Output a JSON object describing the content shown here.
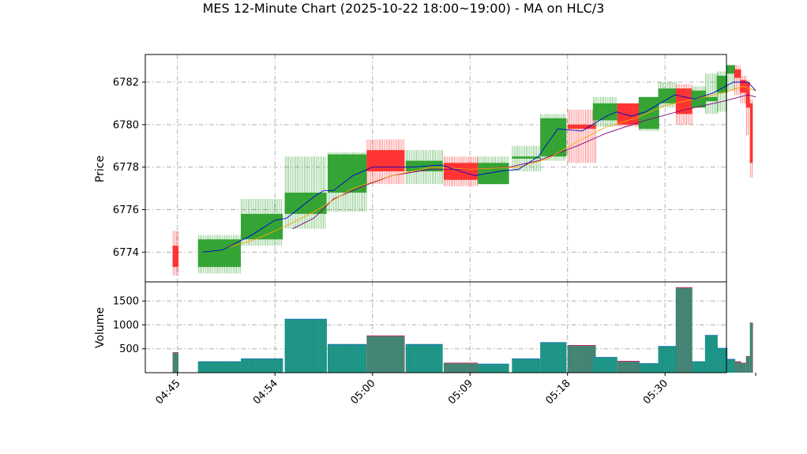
{
  "chart_data": {
    "type": "candlestick",
    "title": "MES 12-Minute Chart (2025-10-22 18:00~19:00) - MA on HLC/3",
    "price_panel": {
      "ylabel": "Price",
      "ylim": [
        6772.6,
        6783.3
      ],
      "yticks": [
        6774,
        6776,
        6778,
        6780,
        6782
      ],
      "grid": true
    },
    "volume_panel": {
      "ylabel": "Volume",
      "ylim": [
        0,
        1900
      ],
      "yticks": [
        500,
        1000,
        1500
      ],
      "grid": true
    },
    "x": {
      "xlim": [
        -3.3,
        56.3
      ],
      "tick_positions": [
        0,
        10,
        20,
        30,
        40,
        50
      ],
      "tick_labels": [
        "04:45",
        "04:54",
        "05:00",
        "05:09",
        "05:18",
        "05:30"
      ]
    },
    "colors": {
      "up": "#2ca02c",
      "down": "#ff2b2b",
      "ma_fast": "#0000cc",
      "ma_mid": "#ffa500",
      "ma_slow": "#800080",
      "vol_face": "#1f9e78",
      "vol_edge_up": "#1f77b4",
      "vol_edge_down": "#c0306a",
      "grid": "#b0b0b0"
    },
    "bars": [
      {
        "x": 0,
        "w": 0.6,
        "o": 6774.3,
        "h": 6775.0,
        "l": 6772.9,
        "c": 6773.3,
        "v": 420
      },
      {
        "x": 2.6,
        "w": 4.4,
        "o": 6773.3,
        "h": 6774.8,
        "l": 6773.0,
        "c": 6774.6,
        "v": 230
      },
      {
        "x": 7.0,
        "w": 4.3,
        "o": 6774.6,
        "h": 6776.5,
        "l": 6774.3,
        "c": 6775.8,
        "v": 290
      },
      {
        "x": 11.5,
        "w": 4.3,
        "o": 6775.8,
        "h": 6778.5,
        "l": 6775.1,
        "c": 6776.8,
        "v": 1120
      },
      {
        "x": 15.9,
        "w": 4.0,
        "o": 6776.8,
        "h": 6778.7,
        "l": 6775.9,
        "c": 6778.6,
        "v": 590
      },
      {
        "x": 19.9,
        "w": 3.9,
        "o": 6778.8,
        "h": 6779.3,
        "l": 6777.2,
        "c": 6777.8,
        "v": 770
      },
      {
        "x": 23.9,
        "w": 3.8,
        "o": 6777.8,
        "h": 6778.8,
        "l": 6777.2,
        "c": 6778.3,
        "v": 590
      },
      {
        "x": 27.8,
        "w": 3.5,
        "o": 6778.2,
        "h": 6778.5,
        "l": 6777.1,
        "c": 6777.4,
        "v": 200
      },
      {
        "x": 31.3,
        "w": 3.2,
        "o": 6777.2,
        "h": 6778.5,
        "l": 6777.2,
        "c": 6778.2,
        "v": 180
      },
      {
        "x": 34.8,
        "w": 2.9,
        "o": 6778.4,
        "h": 6779.0,
        "l": 6777.8,
        "c": 6778.5,
        "v": 290
      },
      {
        "x": 37.7,
        "w": 2.7,
        "o": 6778.5,
        "h": 6780.5,
        "l": 6778.3,
        "c": 6780.3,
        "v": 630
      },
      {
        "x": 40.5,
        "w": 2.9,
        "o": 6780.0,
        "h": 6780.7,
        "l": 6778.2,
        "c": 6779.8,
        "v": 570
      },
      {
        "x": 43.1,
        "w": 2.5,
        "o": 6780.2,
        "h": 6781.3,
        "l": 6779.9,
        "c": 6781.0,
        "v": 320
      },
      {
        "x": 45.6,
        "w": 2.3,
        "o": 6781.0,
        "h": 6781.0,
        "l": 6779.9,
        "c": 6780.0,
        "v": 240
      },
      {
        "x": 47.8,
        "w": 2.1,
        "o": 6779.8,
        "h": 6781.3,
        "l": 6779.7,
        "c": 6781.3,
        "v": 190
      },
      {
        "x": 49.8,
        "w": 1.9,
        "o": 6781.0,
        "h": 6782.0,
        "l": 6780.8,
        "c": 6781.7,
        "v": 550
      },
      {
        "x": 51.6,
        "w": 1.7,
        "o": 6781.7,
        "h": 6781.9,
        "l": 6780.0,
        "c": 6780.5,
        "v": 1780
      },
      {
        "x": 53.2,
        "w": 1.5,
        "o": 6780.8,
        "h": 6781.8,
        "l": 6780.8,
        "c": 6781.6,
        "v": 230
      },
      {
        "x": 54.6,
        "w": 1.3,
        "o": 6781.1,
        "h": 6782.4,
        "l": 6780.5,
        "c": 6781.3,
        "v": 780
      },
      {
        "x": 55.8,
        "w": 1.1,
        "o": 6781.5,
        "h": 6782.5,
        "l": 6780.6,
        "c": 6782.3,
        "v": 510
      },
      {
        "x": 56.8,
        "w": 0.9,
        "o": 6782.4,
        "h": 6782.8,
        "l": 6781.6,
        "c": 6782.8,
        "v": 280
      },
      {
        "x": 57.6,
        "w": 0.7,
        "o": 6782.6,
        "h": 6782.8,
        "l": 6781.4,
        "c": 6782.2,
        "v": 230
      },
      {
        "x": 58.2,
        "w": 0.6,
        "o": 6782.1,
        "h": 6782.3,
        "l": 6781.0,
        "c": 6781.5,
        "v": 200
      },
      {
        "x": 58.8,
        "w": 0.4,
        "o": 6782.0,
        "h": 6782.1,
        "l": 6779.5,
        "c": 6780.8,
        "v": 340
      },
      {
        "x": 59.2,
        "w": 0.3,
        "o": 6781.0,
        "h": 6781.2,
        "l": 6777.5,
        "c": 6778.2,
        "v": 1040
      }
    ],
    "ma_fast": [
      [
        2.6,
        6774.0
      ],
      [
        4.6,
        6774.1
      ],
      [
        7.6,
        6774.8
      ],
      [
        10.0,
        6775.5
      ],
      [
        11.2,
        6775.6
      ],
      [
        14.0,
        6776.6
      ],
      [
        15.0,
        6776.9
      ],
      [
        16.0,
        6776.9
      ],
      [
        18.0,
        6777.6
      ],
      [
        20.0,
        6778.0
      ],
      [
        22.0,
        6778.0
      ],
      [
        24.0,
        6778.0
      ],
      [
        27.0,
        6778.1
      ],
      [
        29.0,
        6777.8
      ],
      [
        30.5,
        6777.6
      ],
      [
        33.0,
        6777.8
      ],
      [
        35.0,
        6777.9
      ],
      [
        37.0,
        6778.5
      ],
      [
        39.0,
        6779.8
      ],
      [
        41.5,
        6779.7
      ],
      [
        44.0,
        6780.4
      ],
      [
        45.0,
        6780.6
      ],
      [
        46.5,
        6780.4
      ],
      [
        48.0,
        6780.6
      ],
      [
        49.5,
        6781.0
      ],
      [
        51.0,
        6781.4
      ],
      [
        53.0,
        6781.2
      ],
      [
        55.0,
        6781.5
      ],
      [
        57.0,
        6782.0
      ],
      [
        58.5,
        6782.0
      ],
      [
        59.3,
        6781.6
      ]
    ],
    "ma_mid": [
      [
        5.0,
        6774.2
      ],
      [
        8.0,
        6774.6
      ],
      [
        11.0,
        6775.2
      ],
      [
        14.0,
        6775.9
      ],
      [
        18.0,
        6777.0
      ],
      [
        22.0,
        6777.6
      ],
      [
        26.0,
        6778.0
      ],
      [
        30.0,
        6777.9
      ],
      [
        35.0,
        6778.0
      ],
      [
        38.0,
        6778.4
      ],
      [
        41.0,
        6779.2
      ],
      [
        44.0,
        6779.9
      ],
      [
        47.0,
        6780.3
      ],
      [
        50.0,
        6780.9
      ],
      [
        53.0,
        6781.2
      ],
      [
        56.0,
        6781.5
      ],
      [
        58.0,
        6781.8
      ],
      [
        59.3,
        6781.6
      ]
    ],
    "ma_slow": [
      [
        11.8,
        6775.1
      ],
      [
        14.0,
        6775.6
      ],
      [
        16.0,
        6776.5
      ],
      [
        19.0,
        6777.1
      ],
      [
        22.0,
        6777.6
      ],
      [
        26.0,
        6777.9
      ],
      [
        30.0,
        6777.9
      ],
      [
        34.0,
        6778.0
      ],
      [
        37.0,
        6778.3
      ],
      [
        41.0,
        6779.0
      ],
      [
        44.0,
        6779.6
      ],
      [
        48.0,
        6780.2
      ],
      [
        52.0,
        6780.7
      ],
      [
        56.0,
        6781.1
      ],
      [
        58.5,
        6781.4
      ],
      [
        59.3,
        6781.3
      ]
    ]
  }
}
